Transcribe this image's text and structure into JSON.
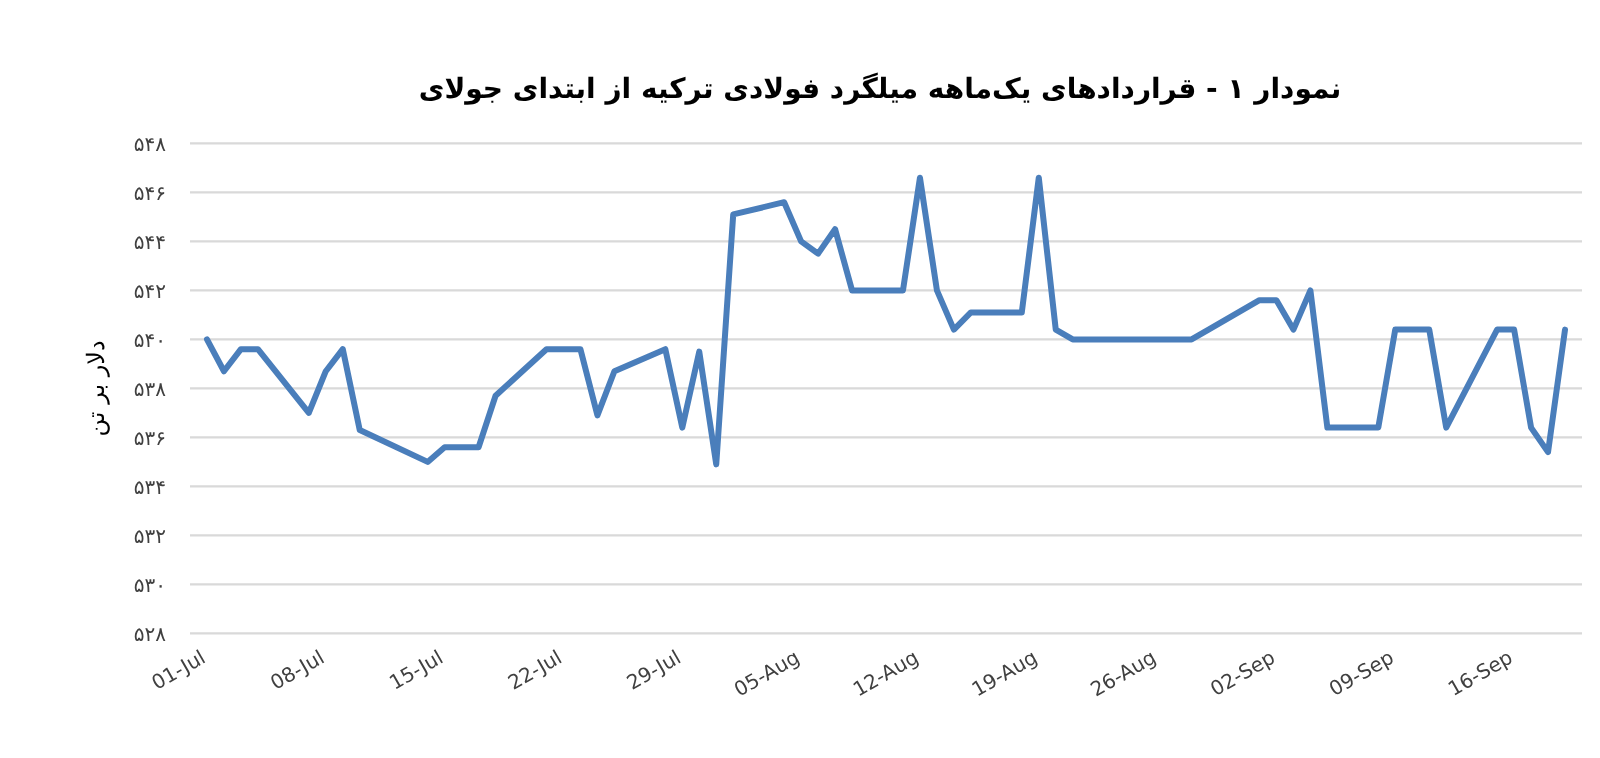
{
  "chart_data": {
    "type": "line",
    "title": "نمودار ۱ - قراردادهای یک‌ماهه میلگرد فولادی ترکیه از ابتدای جولای",
    "ylabel": "دلار بر تن",
    "x": [
      "--07-01",
      "--07-02",
      "--07-03",
      "--07-04",
      "--07-07",
      "--07-08",
      "--07-09",
      "--07-10",
      "--07-14",
      "--07-15",
      "--07-17",
      "--07-18",
      "--07-21",
      "--07-23",
      "--07-24",
      "--07-25",
      "--07-28",
      "--07-29",
      "--07-30",
      "--07-31",
      "--08-01",
      "--08-04",
      "--08-05",
      "--08-06",
      "--08-07",
      "--08-08",
      "--08-11",
      "--08-12",
      "--08-13",
      "--08-14",
      "--08-15",
      "--08-18",
      "--08-19",
      "--08-20",
      "--08-21",
      "--08-28",
      "--08-29",
      "--09-01",
      "--09-02",
      "--09-03",
      "--09-04",
      "--09-05",
      "--09-08",
      "--09-09",
      "--09-11",
      "--09-12",
      "--09-15",
      "--09-16",
      "--09-17",
      "--09-18",
      "--09-19"
    ],
    "series": [
      {
        "color": "#4a7ebb",
        "values": [
          540.0,
          538.7,
          539.6,
          539.6,
          537.0,
          538.7,
          539.6,
          536.3,
          535.0,
          535.6,
          535.6,
          537.7,
          539.6,
          539.6,
          536.9,
          538.7,
          539.6,
          536.4,
          539.5,
          534.9,
          545.1,
          545.6,
          544.0,
          543.5,
          544.5,
          542.0,
          542.0,
          546.6,
          542.0,
          540.4,
          541.1,
          541.1,
          546.6,
          540.4,
          540.0,
          540.0,
          540.4,
          541.6,
          541.6,
          540.4,
          542.0,
          536.4,
          536.4,
          540.4,
          540.4,
          536.4,
          540.4,
          540.4,
          536.4,
          535.4,
          540.4
        ]
      }
    ],
    "xlim": [
      "--06-30",
      "--09-20"
    ],
    "xticks": [
      {
        "value": "--07-01",
        "label": "01-Jul"
      },
      {
        "value": "--07-08",
        "label": "08-Jul"
      },
      {
        "value": "--07-15",
        "label": "15-Jul"
      },
      {
        "value": "--07-22",
        "label": "22-Jul"
      },
      {
        "value": "--07-29",
        "label": "29-Jul"
      },
      {
        "value": "--08-05",
        "label": "05-Aug"
      },
      {
        "value": "--08-12",
        "label": "12-Aug"
      },
      {
        "value": "--08-19",
        "label": "19-Aug"
      },
      {
        "value": "--08-26",
        "label": "26-Aug"
      },
      {
        "value": "--09-02",
        "label": "02-Sep"
      },
      {
        "value": "--09-09",
        "label": "09-Sep"
      },
      {
        "value": "--09-16",
        "label": "16-Sep"
      }
    ],
    "ylim": [
      528,
      548
    ],
    "yticks": [
      {
        "value": 528,
        "label": "۵۲۸"
      },
      {
        "value": 530,
        "label": "۵۳۰"
      },
      {
        "value": 532,
        "label": "۵۳۲"
      },
      {
        "value": 534,
        "label": "۵۳۴"
      },
      {
        "value": 536,
        "label": "۵۳۶"
      },
      {
        "value": 538,
        "label": "۵۳۸"
      },
      {
        "value": 540,
        "label": "۵۴۰"
      },
      {
        "value": 542,
        "label": "۵۴۲"
      },
      {
        "value": 544,
        "label": "۵۴۴"
      },
      {
        "value": 546,
        "label": "۵۴۶"
      },
      {
        "value": 548,
        "label": "۵۴۸"
      }
    ],
    "grid": "y",
    "marker": "none",
    "line_style": "solid"
  }
}
